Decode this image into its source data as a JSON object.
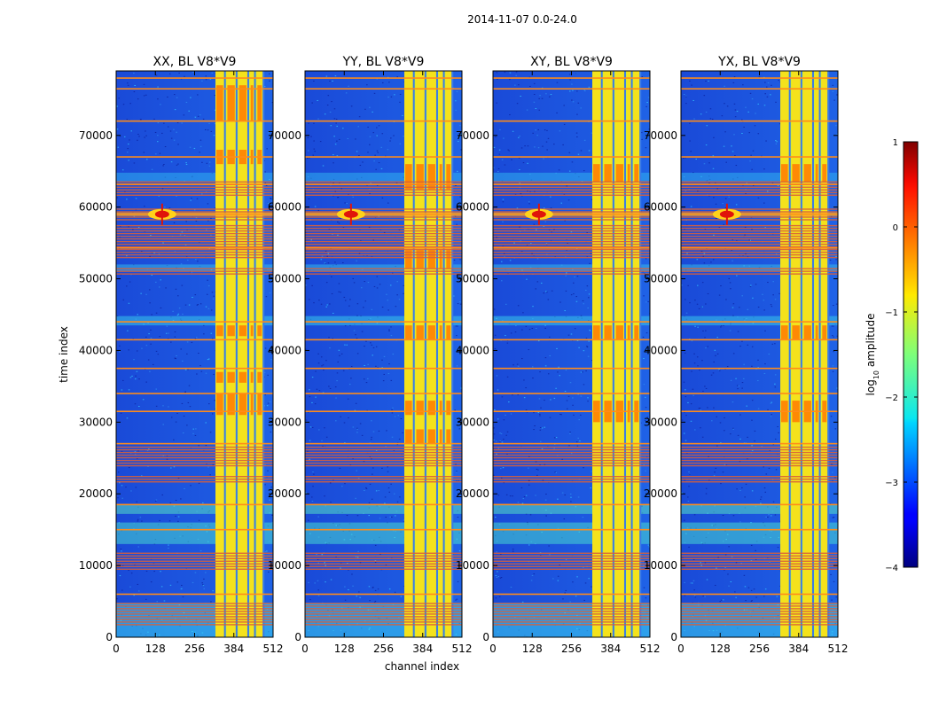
{
  "chart_data": {
    "type": "heatmap",
    "suptitle": "2014-11-07 0.0-24.0",
    "xlabel": "channel index",
    "ylabel": "time index",
    "xlim": [
      0,
      512
    ],
    "ylim": [
      0,
      79000
    ],
    "xticks": [
      0,
      128,
      256,
      384,
      512
    ],
    "yticks": [
      0,
      10000,
      20000,
      30000,
      40000,
      50000,
      60000,
      70000
    ],
    "colormap": "jet",
    "panels": [
      {
        "title": "XX, BL V8*V9",
        "pol": "XX"
      },
      {
        "title": "YY, BL V8*V9",
        "pol": "YY"
      },
      {
        "title": "XY, BL V8*V9",
        "pol": "XY"
      },
      {
        "title": "YX, BL V8*V9",
        "pol": "YX"
      }
    ],
    "colorbar": {
      "label_prefix": "log",
      "label_sub": "10",
      "label_suffix": " amplitude",
      "range": [
        -4,
        1
      ],
      "ticks": [
        1,
        0,
        -1,
        -2,
        -3,
        -4
      ],
      "tick_labels": [
        "1",
        "0",
        "−1",
        "−2",
        "−3",
        "−4"
      ]
    },
    "features": {
      "rfi_channel_band": [
        324,
        478
      ],
      "rfi_sub_channels": [
        [
          324,
          352
        ],
        [
          360,
          390
        ],
        [
          398,
          428
        ],
        [
          436,
          450
        ],
        [
          458,
          478
        ]
      ],
      "interference_source": {
        "channel": 150,
        "time": 59000
      },
      "flagged_time_bands": [
        [
          1500,
          4800
        ],
        [
          9500,
          11800
        ],
        [
          21500,
          22500
        ],
        [
          24000,
          26600
        ],
        [
          50500,
          51500
        ],
        [
          53000,
          57500
        ],
        [
          58200,
          59800
        ],
        [
          61500,
          63600
        ]
      ],
      "rfi_time_lines": [
        6000,
        15000,
        18500,
        27000,
        31500,
        34000,
        37500,
        41500,
        44000,
        54300,
        63200,
        67000,
        72000,
        76500,
        78000
      ]
    }
  }
}
